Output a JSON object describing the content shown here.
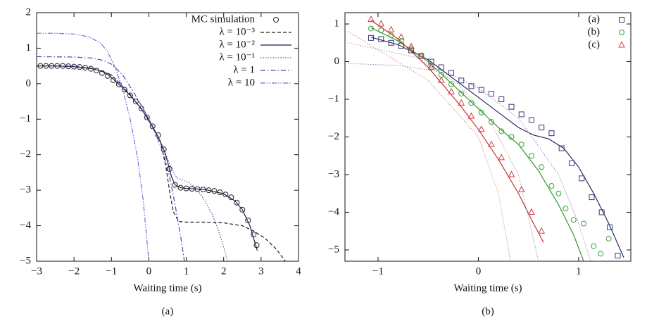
{
  "chart_data": [
    {
      "type": "line",
      "xlabel": "Waiting time (s)",
      "caption": "(a)",
      "xlim": [
        -3,
        4
      ],
      "ylim": [
        -5,
        2
      ],
      "xticks": [
        {
          "value": -3,
          "label": "−3"
        },
        {
          "value": -2,
          "label": "−2"
        },
        {
          "value": -1,
          "label": "−1"
        },
        0,
        1,
        2,
        3,
        4
      ],
      "yticks": [
        {
          "value": -5,
          "label": "−5"
        },
        {
          "value": -4,
          "label": "−4"
        },
        {
          "value": -3,
          "label": "−3"
        },
        {
          "value": -2,
          "label": "−2"
        },
        {
          "value": -1,
          "label": "−1"
        },
        0,
        1,
        2
      ],
      "legend": "upper right",
      "series": [
        {
          "name": "MC simulation",
          "color": "#222222",
          "marker": "circle",
          "x": [
            -2.9,
            -2.75,
            -2.6,
            -2.45,
            -2.3,
            -2.15,
            -2.0,
            -1.85,
            -1.7,
            -1.55,
            -1.4,
            -1.25,
            -1.1,
            -0.95,
            -0.8,
            -0.65,
            -0.5,
            -0.35,
            -0.2,
            -0.05,
            0.1,
            0.25,
            0.4,
            0.55,
            0.7,
            0.85,
            1.0,
            1.15,
            1.3,
            1.45,
            1.6,
            1.75,
            1.9,
            2.05,
            2.2,
            2.35,
            2.5,
            2.65,
            2.8,
            2.88
          ],
          "values": [
            0.5,
            0.5,
            0.5,
            0.5,
            0.5,
            0.49,
            0.48,
            0.47,
            0.45,
            0.42,
            0.37,
            0.3,
            0.22,
            0.1,
            -0.02,
            -0.17,
            -0.33,
            -0.5,
            -0.7,
            -0.95,
            -1.2,
            -1.45,
            -1.85,
            -2.4,
            -2.85,
            -2.93,
            -2.95,
            -2.96,
            -2.97,
            -2.98,
            -3.0,
            -3.02,
            -3.06,
            -3.12,
            -3.2,
            -3.35,
            -3.55,
            -3.85,
            -4.25,
            -4.55
          ]
        },
        {
          "name": "λ = 10⁻³",
          "color": "#1a1a1a",
          "style": "dashed",
          "x": [
            -3,
            -2,
            -1.5,
            -1,
            -0.5,
            0,
            0.3,
            0.45,
            0.55,
            0.65,
            0.8,
            1,
            1.5,
            2,
            2.5,
            2.8,
            3.1,
            3.4,
            3.65
          ],
          "values": [
            0.5,
            0.49,
            0.43,
            0.25,
            -0.3,
            -1.0,
            -1.6,
            -2.3,
            -3.0,
            -3.6,
            -3.88,
            -3.9,
            -3.9,
            -3.92,
            -4.0,
            -4.15,
            -4.35,
            -4.65,
            -5.0
          ]
        },
        {
          "name": "λ = 10⁻²",
          "color": "#1f1f4f",
          "style": "solid",
          "x": [
            -3,
            -2.5,
            -2,
            -1.5,
            -1.2,
            -1,
            -0.8,
            -0.5,
            -0.2,
            0,
            0.2,
            0.4,
            0.5,
            0.6,
            0.7,
            0.85,
            1.0,
            1.5,
            2.0,
            2.3,
            2.5,
            2.7,
            2.9
          ],
          "values": [
            0.5,
            0.5,
            0.48,
            0.42,
            0.33,
            0.18,
            -0.02,
            -0.33,
            -0.7,
            -1.05,
            -1.4,
            -1.85,
            -2.2,
            -2.6,
            -2.85,
            -2.93,
            -2.95,
            -2.98,
            -3.1,
            -3.3,
            -3.55,
            -4.0,
            -4.7
          ]
        },
        {
          "name": "λ = 10⁻¹",
          "color": "#3a3a8a",
          "style": "dotted",
          "x": [
            -3,
            -2,
            -1.5,
            -1,
            -0.5,
            0,
            0.3,
            0.5,
            0.6,
            0.75,
            0.9,
            1.1,
            1.3,
            1.5,
            1.7,
            1.85,
            2.0,
            2.1
          ],
          "values": [
            0.5,
            0.49,
            0.43,
            0.25,
            -0.3,
            -1.0,
            -1.6,
            -2.1,
            -2.4,
            -2.65,
            -2.72,
            -2.8,
            -3.0,
            -3.3,
            -3.7,
            -4.1,
            -4.6,
            -5.0
          ]
        },
        {
          "name": "λ = 1",
          "color": "#4a4ab0",
          "style": "dashdot",
          "x": [
            -3,
            -2,
            -1.5,
            -1.2,
            -1,
            -0.7,
            -0.4,
            -0.1,
            0.2,
            0.4,
            0.55,
            0.7,
            0.85,
            0.95
          ],
          "values": [
            0.76,
            0.75,
            0.72,
            0.65,
            0.55,
            0.25,
            -0.25,
            -0.8,
            -1.45,
            -2.0,
            -2.6,
            -3.4,
            -4.3,
            -5.0
          ]
        },
        {
          "name": "λ = 10",
          "color": "#7070e0",
          "style": "dashdotdot",
          "x": [
            -3,
            -2.5,
            -2,
            -1.6,
            -1.3,
            -1.1,
            -0.9,
            -0.7,
            -0.5,
            -0.3,
            -0.15,
            0
          ],
          "values": [
            1.42,
            1.42,
            1.4,
            1.32,
            1.15,
            0.9,
            0.45,
            -0.15,
            -1.0,
            -2.1,
            -3.3,
            -5.0
          ]
        }
      ]
    },
    {
      "type": "scatter",
      "xlabel": "Waiting time (s)",
      "caption": "(b)",
      "xlim": [
        -1.33,
        1.52
      ],
      "ylim": [
        -5.3,
        1.3
      ],
      "xticks": [
        {
          "value": -1,
          "label": "−1"
        },
        0,
        1
      ],
      "yticks": [
        {
          "value": -5,
          "label": "−5"
        },
        {
          "value": -4,
          "label": "−4"
        },
        {
          "value": -3,
          "label": "−3"
        },
        {
          "value": -2,
          "label": "−2"
        },
        {
          "value": -1,
          "label": "−1"
        },
        0,
        1
      ],
      "legend": "upper right",
      "series": [
        {
          "name": "(a)",
          "color": "#3a3a7a",
          "marker": "square",
          "x": [
            -1.07,
            -0.97,
            -0.87,
            -0.77,
            -0.67,
            -0.57,
            -0.47,
            -0.37,
            -0.27,
            -0.17,
            -0.07,
            0.03,
            0.13,
            0.23,
            0.33,
            0.43,
            0.53,
            0.63,
            0.73,
            0.83,
            0.93,
            1.03,
            1.13,
            1.23,
            1.31,
            1.39
          ],
          "values": [
            0.63,
            0.6,
            0.5,
            0.42,
            0.3,
            0.15,
            0.0,
            -0.15,
            -0.3,
            -0.5,
            -0.65,
            -0.75,
            -0.85,
            -1.0,
            -1.2,
            -1.4,
            -1.55,
            -1.75,
            -1.9,
            -2.3,
            -2.7,
            -3.1,
            -3.6,
            -4.0,
            -4.4,
            -5.15
          ]
        },
        {
          "name": "(b)",
          "color": "#3aa03a",
          "marker": "circle",
          "x": [
            -1.07,
            -0.97,
            -0.87,
            -0.77,
            -0.67,
            -0.57,
            -0.47,
            -0.37,
            -0.27,
            -0.17,
            -0.07,
            0.03,
            0.13,
            0.23,
            0.33,
            0.43,
            0.53,
            0.63,
            0.73,
            0.8,
            0.87,
            0.95,
            1.05,
            1.15,
            1.22,
            1.3
          ],
          "values": [
            0.88,
            0.83,
            0.7,
            0.55,
            0.35,
            0.15,
            -0.1,
            -0.35,
            -0.6,
            -0.85,
            -1.1,
            -1.35,
            -1.6,
            -1.85,
            -2.0,
            -2.2,
            -2.5,
            -2.8,
            -3.3,
            -3.5,
            -3.9,
            -4.2,
            -4.3,
            -4.9,
            -5.1,
            -4.7
          ]
        },
        {
          "name": "(c)",
          "color": "#d04040",
          "marker": "triangle",
          "x": [
            -1.07,
            -0.97,
            -0.87,
            -0.77,
            -0.67,
            -0.57,
            -0.47,
            -0.37,
            -0.27,
            -0.17,
            -0.07,
            0.03,
            0.13,
            0.23,
            0.33,
            0.43,
            0.53,
            0.63
          ],
          "values": [
            1.12,
            1.0,
            0.85,
            0.65,
            0.4,
            0.15,
            -0.15,
            -0.5,
            -0.8,
            -1.1,
            -1.45,
            -1.8,
            -2.2,
            -2.55,
            -3.0,
            -3.4,
            -4.0,
            -4.5
          ]
        }
      ],
      "lines": [
        {
          "color": "#2a2a5e",
          "style": "solid",
          "x": [
            -1.07,
            -0.8,
            -0.5,
            -0.2,
            0,
            0.2,
            0.4,
            0.55,
            0.7,
            0.85,
            1.0,
            1.15,
            1.3,
            1.45
          ],
          "values": [
            0.65,
            0.45,
            0.05,
            -0.55,
            -0.95,
            -1.35,
            -1.75,
            -1.95,
            -2.05,
            -2.3,
            -2.8,
            -3.5,
            -4.3,
            -5.2
          ]
        },
        {
          "color": "#2f9a2f",
          "style": "solid",
          "x": [
            -1.07,
            -0.8,
            -0.5,
            -0.2,
            0,
            0.2,
            0.4,
            0.6,
            0.8,
            0.95,
            1.05
          ],
          "values": [
            0.9,
            0.55,
            0.0,
            -0.75,
            -1.25,
            -1.75,
            -2.2,
            -2.9,
            -3.8,
            -4.6,
            -5.3
          ]
        },
        {
          "color": "#cc3030",
          "style": "solid",
          "x": [
            -1.07,
            -0.8,
            -0.5,
            -0.2,
            0,
            0.2,
            0.4,
            0.55,
            0.65
          ],
          "values": [
            1.1,
            0.6,
            -0.15,
            -1.1,
            -1.8,
            -2.6,
            -3.5,
            -4.3,
            -4.8
          ]
        },
        {
          "color": "#8a8ab0",
          "style": "dotted",
          "x": [
            -1.3,
            -0.8,
            -0.3,
            0,
            0.4,
            0.8,
            1.0,
            1.12
          ],
          "values": [
            -0.05,
            -0.1,
            -0.3,
            -0.7,
            -1.5,
            -3.0,
            -4.3,
            -5.3
          ]
        },
        {
          "color": "#a0a0a0",
          "style": "dotted",
          "x": [
            -1.3,
            -0.6,
            -0.2,
            0.1,
            0.4,
            0.6
          ],
          "values": [
            0.5,
            0.1,
            -0.6,
            -1.5,
            -3.0,
            -5.3
          ]
        },
        {
          "color": "#e08080",
          "style": "dotted",
          "x": [
            -1.3,
            -0.5,
            0,
            0.2,
            0.32
          ],
          "values": [
            0.8,
            -0.5,
            -2.0,
            -3.5,
            -5.3
          ]
        }
      ]
    }
  ]
}
